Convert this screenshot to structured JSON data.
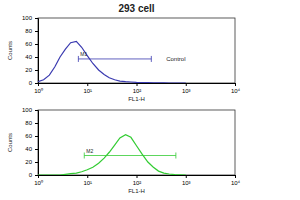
{
  "chart_data": [
    {
      "type": "line",
      "title": "293 cell",
      "x_label": "FL1-H",
      "y_label": "Counts",
      "log": "x",
      "color": "#3a3ab0",
      "x": [
        1,
        1.3,
        1.7,
        2.2,
        2.8,
        3.6,
        4.6,
        6,
        7.7,
        10,
        13,
        17,
        22,
        28,
        36,
        46,
        60,
        77,
        100,
        130,
        170,
        220,
        280,
        360,
        460,
        600,
        770,
        1000
      ],
      "values": [
        2,
        5,
        12,
        25,
        40,
        52,
        62,
        64,
        55,
        42,
        30,
        20,
        13,
        8,
        5,
        3,
        2,
        1.5,
        1,
        0.7,
        0.5,
        0.3,
        0.2,
        0.1,
        0,
        0,
        0,
        0
      ],
      "xlim": [
        1,
        10000
      ],
      "xticks": [
        {
          "value": 1,
          "label": "10⁰"
        },
        {
          "value": 10,
          "label": "10¹"
        },
        {
          "value": 100,
          "label": "10²"
        },
        {
          "value": 1000,
          "label": "10³"
        },
        {
          "value": 10000,
          "label": "10⁴"
        }
      ],
      "ylim": [
        0,
        100
      ],
      "yticks": [
        0,
        20,
        40,
        60,
        80,
        100
      ],
      "gates": [
        {
          "label": "M1",
          "range": [
            6.6,
            200
          ],
          "y": 37
        }
      ],
      "annotations": [
        {
          "text": "Control",
          "x": 400,
          "y": 37
        }
      ]
    },
    {
      "type": "line",
      "x_label": "FL1-H",
      "y_label": "Counts",
      "log": "x",
      "color": "#33cc33",
      "x": [
        1,
        1.3,
        1.7,
        2.2,
        2.8,
        3.6,
        4.6,
        6,
        7.7,
        10,
        13,
        17,
        22,
        28,
        36,
        46,
        60,
        77,
        100,
        130,
        170,
        220,
        280,
        360,
        460,
        600,
        770,
        1000
      ],
      "values": [
        0,
        0,
        0,
        0,
        0,
        1,
        2,
        3,
        5,
        8,
        12,
        18,
        26,
        35,
        46,
        57,
        62,
        58,
        45,
        32,
        20,
        12,
        6,
        3,
        1.5,
        0.5,
        0.2,
        0
      ],
      "xlim": [
        1,
        10000
      ],
      "xticks": [
        {
          "value": 1,
          "label": "10⁰"
        },
        {
          "value": 10,
          "label": "10¹"
        },
        {
          "value": 100,
          "label": "10²"
        },
        {
          "value": 1000,
          "label": "10³"
        },
        {
          "value": 10000,
          "label": "10⁴"
        }
      ],
      "ylim": [
        0,
        100
      ],
      "yticks": [
        0,
        20,
        40,
        60,
        80,
        100
      ],
      "gates": [
        {
          "label": "M2",
          "range": [
            8.7,
            630
          ],
          "y": 30
        }
      ]
    }
  ]
}
